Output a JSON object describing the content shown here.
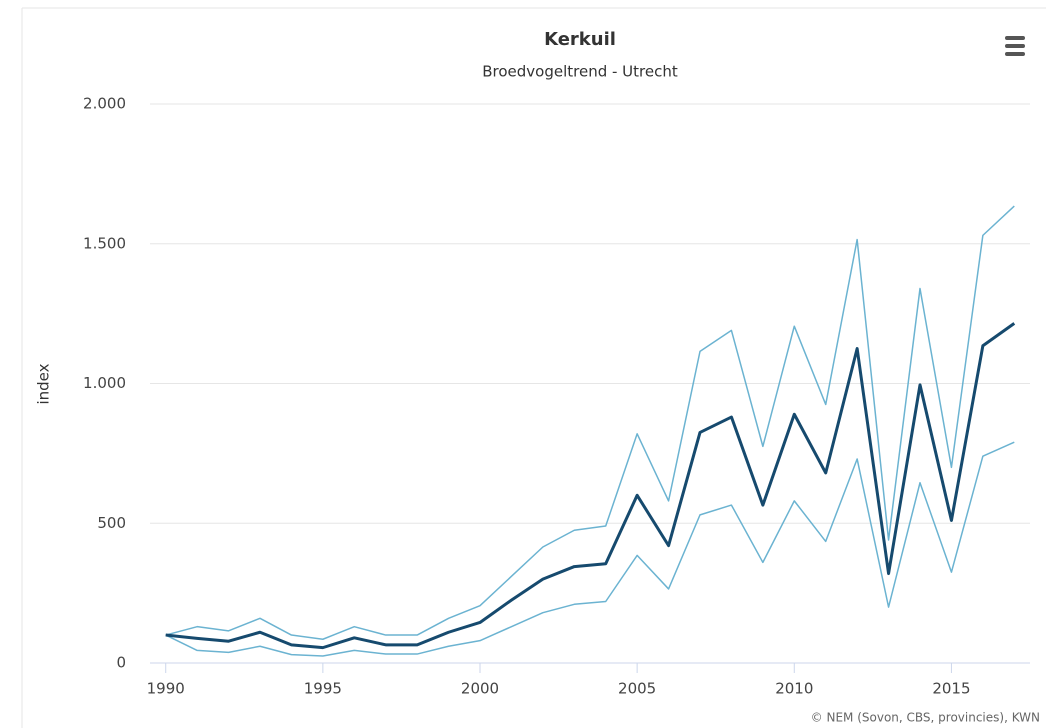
{
  "chart_data": {
    "type": "line",
    "title": "Kerkuil",
    "subtitle": "Broedvogeltrend - Utrecht",
    "y_label": "index",
    "credits": "© NEM (Sovon, CBS, provincies), KWN",
    "x": [
      1990,
      1991,
      1992,
      1993,
      1994,
      1995,
      1996,
      1997,
      1998,
      1999,
      2000,
      2001,
      2002,
      2003,
      2004,
      2005,
      2006,
      2007,
      2008,
      2009,
      2010,
      2011,
      2012,
      2013,
      2014,
      2015,
      2016,
      2017
    ],
    "series": [
      {
        "color": "#6bb3d1",
        "values": [
          100,
          130,
          115,
          160,
          100,
          85,
          130,
          100,
          100,
          160,
          205,
          310,
          415,
          475,
          490,
          820,
          580,
          1115,
          1190,
          775,
          1205,
          925,
          1515,
          440,
          1340,
          700,
          1530,
          1635
        ]
      },
      {
        "color": "#6bb3d1",
        "values": [
          100,
          45,
          38,
          60,
          30,
          25,
          45,
          32,
          32,
          60,
          80,
          130,
          180,
          210,
          220,
          385,
          265,
          530,
          565,
          360,
          580,
          435,
          730,
          200,
          645,
          325,
          740,
          790
        ]
      },
      {
        "color": "#164a6e",
        "values": [
          100,
          88,
          78,
          110,
          65,
          55,
          90,
          65,
          65,
          110,
          145,
          225,
          300,
          345,
          355,
          600,
          420,
          825,
          880,
          565,
          890,
          680,
          1125,
          320,
          995,
          510,
          1135,
          1215
        ]
      }
    ],
    "xlim": [
      1989.5,
      2017.5
    ],
    "xticks": [
      1990,
      1995,
      2000,
      2005,
      2010,
      2015
    ],
    "ylim": [
      0,
      2000
    ],
    "yticks": [
      0,
      500,
      {
        "value": 1000,
        "label": "1.000"
      },
      {
        "value": 1500,
        "label": "1.500"
      },
      {
        "value": 2000,
        "label": "2.000"
      }
    ],
    "grid": true
  }
}
